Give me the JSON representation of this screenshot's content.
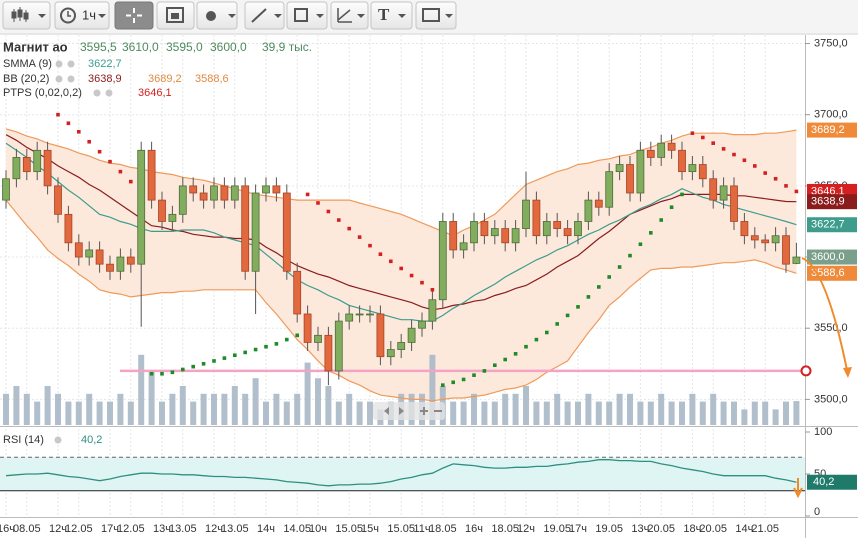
{
  "toolbar": {
    "interval": "1ч",
    "text_tool": "T"
  },
  "chart_data": [
    {
      "type": "candlestick",
      "title": "Магнит ао",
      "ohlc_labels": [
        "3595,5",
        "3610,0",
        "3595,0",
        "3600,0"
      ],
      "volume_label": "39,9 тыс.",
      "categories": [
        "16ч",
        null,
        "08.05",
        null,
        null,
        "12ч",
        null,
        "12.05",
        null,
        null,
        "17ч",
        null,
        "12.05",
        null,
        null,
        "13ч",
        null,
        "13.05",
        null,
        null,
        "12ч",
        null,
        "13.05",
        null,
        null,
        "14ч",
        null,
        null,
        "14.05",
        null,
        "10ч",
        null,
        null,
        "15.05",
        null,
        "15ч",
        null,
        null,
        "15.05",
        null,
        "11ч",
        null,
        "18.05",
        null,
        null,
        "16ч",
        null,
        null,
        "18.05",
        null,
        "12ч",
        null,
        null,
        "19.05",
        null,
        "17ч",
        null,
        null,
        "19.05",
        null,
        null,
        "13ч",
        null,
        "20.05",
        null,
        null,
        "18ч",
        null,
        "20.05",
        null,
        null,
        "14ч",
        null,
        "21.05",
        null,
        null,
        null
      ],
      "open": [
        3640,
        3655,
        3670,
        3660,
        3675,
        3650,
        3630,
        3610,
        3600,
        3605,
        3595,
        3590,
        3600,
        3595,
        3675,
        3640,
        3625,
        3630,
        3650,
        3645,
        3640,
        3650,
        3640,
        3650,
        3590,
        3645,
        3650,
        3645,
        3590,
        3560,
        3540,
        3545,
        3520,
        3555,
        3560,
        3560,
        3560,
        3530,
        3535,
        3540,
        3550,
        3555,
        3570,
        3625,
        3605,
        3610,
        3625,
        3615,
        3620,
        3610,
        3620,
        3640,
        3615,
        3625,
        3620,
        3615,
        3625,
        3640,
        3635,
        3660,
        3665,
        3645,
        3675,
        3670,
        3680,
        3675,
        3660,
        3665,
        3655,
        3640,
        3650,
        3625,
        3615,
        3612,
        3610,
        3615,
        3595.5
      ],
      "high": [
        3661,
        3676,
        3676,
        3681,
        3681,
        3656,
        3636,
        3616,
        3611,
        3611,
        3601,
        3606,
        3606,
        3681,
        3681,
        3646,
        3636,
        3656,
        3656,
        3651,
        3656,
        3656,
        3656,
        3656,
        3651,
        3656,
        3656,
        3651,
        3596,
        3566,
        3551,
        3551,
        3561,
        3566,
        3566,
        3566,
        3566,
        3541,
        3546,
        3556,
        3561,
        3576,
        3631,
        3631,
        3616,
        3631,
        3631,
        3626,
        3626,
        3626,
        3660,
        3646,
        3631,
        3631,
        3626,
        3631,
        3646,
        3646,
        3666,
        3671,
        3671,
        3681,
        3681,
        3686,
        3686,
        3681,
        3671,
        3671,
        3661,
        3656,
        3656,
        3631,
        3621,
        3616,
        3621,
        3621,
        3610
      ],
      "low": [
        3634,
        3649,
        3654,
        3654,
        3644,
        3624,
        3604,
        3594,
        3594,
        3589,
        3584,
        3584,
        3589,
        3551,
        3634,
        3619,
        3619,
        3624,
        3639,
        3634,
        3634,
        3634,
        3634,
        3584,
        3560,
        3639,
        3639,
        3584,
        3554,
        3534,
        3534,
        3510,
        3514,
        3549,
        3554,
        3554,
        3524,
        3524,
        3529,
        3534,
        3544,
        3549,
        3564,
        3599,
        3599,
        3604,
        3609,
        3609,
        3604,
        3604,
        3614,
        3609,
        3609,
        3614,
        3609,
        3609,
        3619,
        3629,
        3629,
        3654,
        3639,
        3639,
        3664,
        3664,
        3669,
        3654,
        3654,
        3649,
        3634,
        3634,
        3619,
        3609,
        3606,
        3604,
        3604,
        3589,
        3595
      ],
      "close": [
        3655,
        3670,
        3660,
        3675,
        3650,
        3630,
        3610,
        3600,
        3605,
        3595,
        3590,
        3600,
        3595,
        3675,
        3640,
        3625,
        3630,
        3650,
        3645,
        3640,
        3650,
        3640,
        3650,
        3590,
        3645,
        3650,
        3645,
        3590,
        3560,
        3540,
        3545,
        3520,
        3555,
        3560,
        3560,
        3560,
        3530,
        3535,
        3540,
        3550,
        3555,
        3570,
        3625,
        3605,
        3610,
        3625,
        3615,
        3620,
        3610,
        3620,
        3640,
        3615,
        3625,
        3620,
        3615,
        3625,
        3640,
        3635,
        3660,
        3665,
        3645,
        3675,
        3670,
        3680,
        3675,
        3660,
        3665,
        3655,
        3640,
        3650,
        3625,
        3615,
        3612,
        3610,
        3615,
        3595,
        3600
      ],
      "volume": [
        52,
        65,
        52,
        39,
        65,
        52,
        39,
        39,
        52,
        39,
        39,
        52,
        39,
        117,
        91,
        39,
        52,
        65,
        39,
        52,
        52,
        52,
        65,
        52,
        78,
        39,
        52,
        39,
        52,
        104,
        78,
        65,
        39,
        52,
        39,
        39,
        26,
        39,
        52,
        52,
        52,
        117,
        65,
        39,
        39,
        52,
        39,
        39,
        52,
        52,
        65,
        39,
        39,
        52,
        39,
        39,
        52,
        39,
        39,
        52,
        52,
        39,
        39,
        52,
        39,
        39,
        52,
        39,
        52,
        39,
        39,
        26,
        39,
        39,
        26,
        39,
        39.9
      ],
      "up_color": "#82ad5f",
      "down_color": "#e2683e",
      "volume_color": "#a9b8c6",
      "ylim": [
        3482,
        3756
      ],
      "yticks": [
        {
          "value": 3500,
          "label": "3500,0"
        },
        {
          "value": 3550,
          "label": "3550,0"
        },
        {
          "value": 3600,
          "label": "3600,0"
        },
        {
          "value": 3650,
          "label": "3650,0"
        },
        {
          "value": 3700,
          "label": "3700,0"
        },
        {
          "value": 3750,
          "label": "3750,0"
        }
      ],
      "grid": true,
      "hline": 3520,
      "hline_color": "#f4a3c4",
      "smma": {
        "name": "SMMA (9)",
        "color": "#3d9c8c",
        "last_label": "3622,7",
        "values": [
          3680,
          3675,
          3670,
          3664,
          3659,
          3653,
          3647,
          3642,
          3636,
          3630,
          3628,
          3625,
          3623,
          3620,
          3618,
          3618,
          3618,
          3619,
          3619,
          3619,
          3617,
          3614,
          3612,
          3610,
          3608,
          3602,
          3596,
          3590,
          3584,
          3580,
          3577,
          3573,
          3570,
          3566,
          3564,
          3562,
          3560,
          3558,
          3556,
          3556,
          3555,
          3555,
          3559,
          3564,
          3568,
          3573,
          3577,
          3581,
          3586,
          3590,
          3594,
          3598,
          3601,
          3605,
          3608,
          3612,
          3616,
          3619,
          3623,
          3626,
          3630,
          3634,
          3637,
          3641,
          3644,
          3648,
          3645,
          3642,
          3640,
          3637,
          3635,
          3633,
          3631,
          3629,
          3627,
          3625,
          3622.7
        ]
      },
      "bb": {
        "name": "BB (20,2)",
        "color": "#ef9a5a",
        "fill": "#fde9dc",
        "middle_color": "#8b1c1c",
        "last_labels": [
          "3638,9",
          "3689,2",
          "3588,6"
        ],
        "middle": [
          3686,
          3682,
          3677,
          3673,
          3669,
          3664,
          3660,
          3656,
          3651,
          3647,
          3642,
          3637,
          3632,
          3627,
          3622,
          3621,
          3619,
          3618,
          3616,
          3615,
          3614,
          3614,
          3613,
          3613,
          3612,
          3607,
          3603,
          3598,
          3594,
          3591,
          3588,
          3586,
          3583,
          3580,
          3578,
          3576,
          3574,
          3572,
          3570,
          3568,
          3565,
          3563,
          3564,
          3566,
          3567,
          3569,
          3570,
          3573,
          3575,
          3578,
          3580,
          3584,
          3588,
          3593,
          3597,
          3601,
          3607,
          3613,
          3618,
          3624,
          3630,
          3633,
          3636,
          3639,
          3641,
          3644,
          3644,
          3644,
          3644,
          3644,
          3643,
          3643,
          3642,
          3641,
          3640,
          3639,
          3638.9
        ],
        "upper": [
          3690,
          3688,
          3685,
          3683,
          3680,
          3678,
          3676,
          3673,
          3671,
          3668,
          3666,
          3665,
          3663,
          3662,
          3660,
          3659,
          3658,
          3656,
          3655,
          3654,
          3652,
          3650,
          3648,
          3646,
          3644,
          3643,
          3642,
          3641,
          3640,
          3640,
          3640,
          3640,
          3640,
          3640,
          3638,
          3636,
          3634,
          3632,
          3630,
          3627,
          3624,
          3621,
          3618,
          3615,
          3619,
          3622,
          3626,
          3630,
          3637,
          3644,
          3651,
          3654,
          3657,
          3660,
          3662,
          3665,
          3666,
          3668,
          3669,
          3671,
          3672,
          3675,
          3677,
          3680,
          3682,
          3685,
          3687,
          3687,
          3687,
          3687,
          3686,
          3686,
          3686,
          3687,
          3687,
          3688,
          3689.2
        ],
        "lower": [
          3640,
          3631,
          3622,
          3614,
          3605,
          3599,
          3594,
          3588,
          3583,
          3577,
          3575,
          3574,
          3572,
          3573,
          3574,
          3575,
          3575,
          3576,
          3576,
          3577,
          3577,
          3577,
          3577,
          3577,
          3577,
          3568,
          3560,
          3551,
          3542,
          3535,
          3527,
          3520,
          3517,
          3513,
          3510,
          3506,
          3503,
          3502,
          3501,
          3500,
          3500,
          3499,
          3500,
          3501,
          3501,
          3502,
          3503,
          3505,
          3507,
          3508,
          3510,
          3514,
          3519,
          3523,
          3527,
          3537,
          3547,
          3556,
          3566,
          3572,
          3579,
          3585,
          3591,
          3592,
          3592,
          3593,
          3593,
          3594,
          3595,
          3596,
          3596,
          3597,
          3598,
          3596,
          3593,
          3591,
          3588.6
        ]
      },
      "ptps": {
        "name": "PTPS (0,02,0,2)",
        "color_above": "#d42020",
        "color_below": "#1f8a2a",
        "last_label": "3646,1",
        "values": [
          null,
          null,
          null,
          null,
          null,
          3700,
          3694,
          3688,
          3681,
          3674,
          3667,
          3660,
          3653,
          3647,
          3518,
          3518,
          3519,
          3521,
          3523,
          3525,
          3527,
          3529,
          3531,
          3533,
          3535,
          3537,
          3539,
          3542,
          3545,
          3644,
          3638,
          3632,
          3626,
          3620,
          3614,
          3608,
          3602,
          3597,
          3592,
          3587,
          3582,
          3577,
          3510,
          3512,
          3514,
          3517,
          3520,
          3524,
          3528,
          3532,
          3537,
          3542,
          3547,
          3553,
          3559,
          3565,
          3572,
          3579,
          3586,
          3593,
          3601,
          3609,
          3617,
          3626,
          3635,
          3644,
          3687,
          3684,
          3680,
          3676,
          3672,
          3668,
          3664,
          3659,
          3655,
          3650,
          3646.1
        ]
      }
    },
    {
      "type": "line",
      "name": "RSI (14)",
      "color": "#2f8f80",
      "fill": "#dff5f3",
      "last_label": "40,2",
      "ylim": [
        0,
        100
      ],
      "yticks": [
        0,
        50,
        100
      ],
      "levels": [
        70,
        30
      ],
      "values": [
        48,
        49,
        50,
        50,
        51,
        49,
        47,
        46,
        44,
        42,
        44,
        47,
        49,
        51,
        51,
        50,
        50,
        49,
        49,
        48,
        47,
        47,
        46,
        46,
        45,
        44,
        43,
        41,
        40,
        39,
        37,
        36,
        37,
        37,
        38,
        38,
        39,
        41,
        44,
        46,
        49,
        51,
        57,
        62,
        61,
        60,
        58,
        57,
        57,
        58,
        58,
        59,
        59,
        61,
        62,
        64,
        65,
        67,
        67,
        66,
        66,
        65,
        65,
        62,
        60,
        57,
        55,
        53,
        50,
        48,
        48,
        48,
        48,
        48,
        45,
        43,
        40.2
      ]
    }
  ]
}
